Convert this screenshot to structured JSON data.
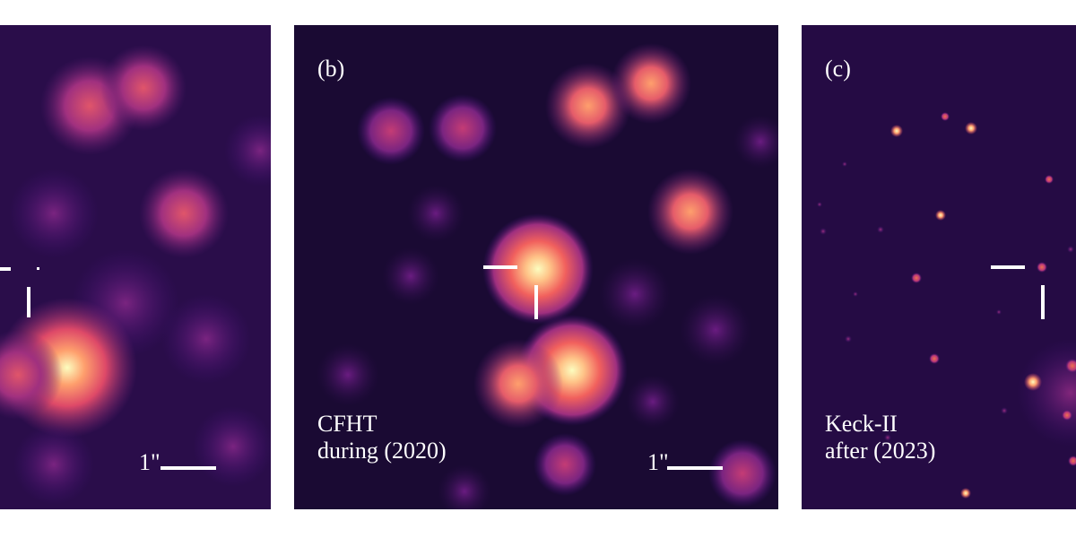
{
  "panels": [
    {
      "id": "a",
      "letter": "",
      "caption": "",
      "scale_label": "1\"",
      "background": "#2a0d4a"
    },
    {
      "id": "b",
      "letter": "(b)",
      "caption": "CFHT\nduring (2020)",
      "scale_label": "1\"",
      "background": "#1a0a33"
    },
    {
      "id": "c",
      "letter": "(c)",
      "caption": "Keck-II\nafter (2023)",
      "scale_label": "",
      "background": "#250b44"
    }
  ],
  "colors": {
    "colormap": [
      "#0d0525",
      "#3b0f70",
      "#8c2981",
      "#de4968",
      "#fe9f6d",
      "#fcfdbf"
    ],
    "markers": "#ffffff"
  }
}
